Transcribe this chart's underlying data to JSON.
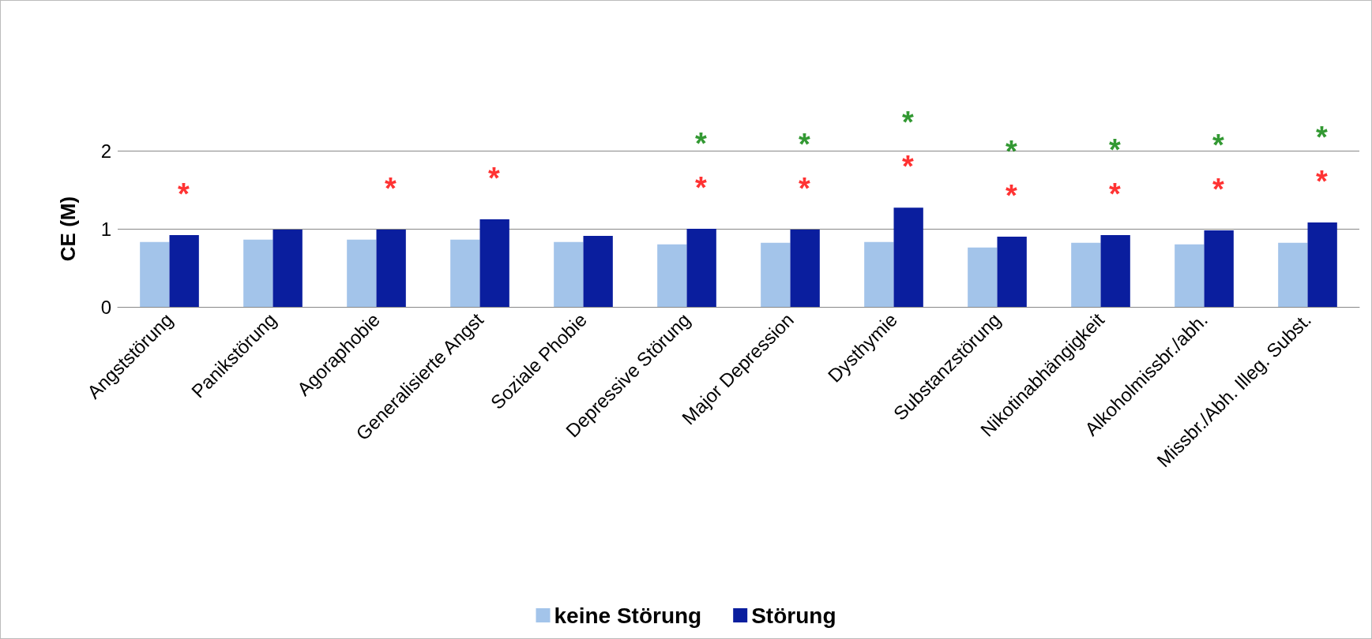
{
  "chart_data": {
    "type": "bar",
    "ylabel": "CE (M)",
    "categories": [
      "Angststörung",
      "Panikstörung",
      "Agoraphobie",
      "Generalisierte Angst",
      "Soziale Phobie",
      "Depressive Störung",
      "Major Depression",
      "Dysthymie",
      "Substanzstörung",
      "Nikotinabhängigkeit",
      "Alkoholmissbr./abh.",
      "Missbr./Abh. Illeg. Subst."
    ],
    "series": [
      {
        "name": "keine Störung",
        "color": "#a3c4ea",
        "values": [
          0.83,
          0.86,
          0.86,
          0.86,
          0.83,
          0.8,
          0.82,
          0.83,
          0.76,
          0.82,
          0.8,
          0.82
        ]
      },
      {
        "name": "Störung",
        "color": "#0a1e9e",
        "values": [
          0.92,
          0.99,
          0.99,
          1.12,
          0.91,
          1.0,
          0.99,
          1.27,
          0.9,
          0.92,
          0.98,
          1.08
        ]
      }
    ],
    "ylim": [
      0,
      2
    ],
    "yticks": [
      0,
      1,
      2
    ],
    "grid": "y",
    "legend": "bottom",
    "annotations": [
      {
        "text": "*",
        "x": "Angststörung",
        "y": 0.92
      },
      {
        "text": "*",
        "x": "Agoraphobie",
        "y": 0.99
      },
      {
        "text": "*",
        "x": "Generalisierte Angst",
        "y": 1.12
      },
      {
        "text": "*",
        "x": "Depressive Störung",
        "y": 1.0
      },
      {
        "text": "*",
        "x": "Major Depression",
        "y": 0.99
      },
      {
        "text": "*",
        "x": "Dysthymie",
        "y": 1.27
      },
      {
        "text": "*",
        "x": "Substanzstörung",
        "y": 0.9
      },
      {
        "text": "*",
        "x": "Nikotinabhängigkeit",
        "y": 0.92
      },
      {
        "text": "*",
        "x": "Alkoholmissbr./abh.",
        "y": 0.98
      },
      {
        "text": "*",
        "x": "Missbr./Abh. Illeg. Subst.",
        "y": 1.08
      },
      {
        "text": "*",
        "x": "Depressive Störung",
        "y": 1.0
      },
      {
        "text": "*",
        "x": "Major Depression",
        "y": 0.99
      },
      {
        "text": "*",
        "x": "Dysthymie",
        "y": 1.27
      },
      {
        "text": "*",
        "x": "Substanzstörung",
        "y": 0.9
      },
      {
        "text": "*",
        "x": "Nikotinabhängigkeit",
        "y": 0.92
      },
      {
        "text": "*",
        "x": "Alkoholmissbr./abh.",
        "y": 0.98
      },
      {
        "text": "*",
        "x": "Missbr./Abh. Illeg. Subst.",
        "y": 1.08
      }
    ]
  }
}
